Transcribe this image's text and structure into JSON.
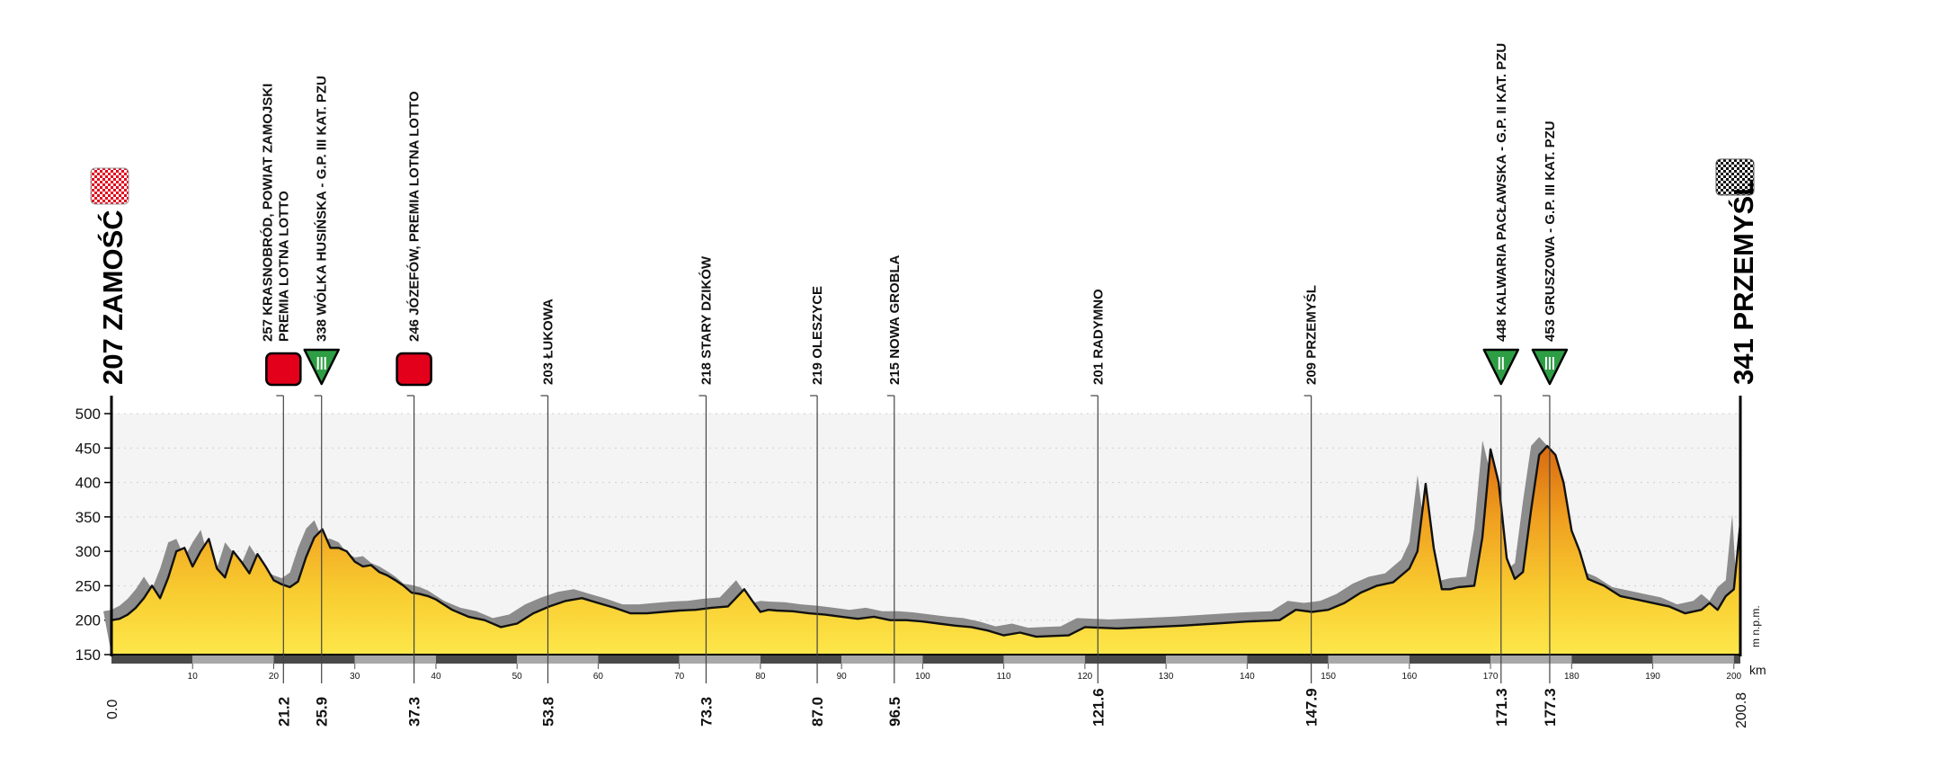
{
  "chart_data": {
    "type": "area",
    "title": "",
    "xlabel": "km",
    "ylabel": "m n.p.m.",
    "xlim": [
      0,
      200.8
    ],
    "ylim": [
      150,
      500
    ],
    "y_ticks": [
      150,
      200,
      250,
      300,
      350,
      400,
      450,
      500
    ],
    "x_ticks": [
      10,
      20,
      30,
      40,
      50,
      60,
      70,
      80,
      90,
      100,
      110,
      120,
      130,
      140,
      150,
      160,
      170,
      180,
      190,
      200
    ],
    "grid": true,
    "start": {
      "elevation_label": "207",
      "city": "ZAMOŚĆ",
      "km_label": "0.0"
    },
    "finish": {
      "elevation_label": "341",
      "city": "PRZEMYŚL",
      "km_label": "200.8"
    },
    "waypoints": [
      {
        "km": 21.2,
        "km_label": "21.2",
        "lines": [
          "257 KRASNOBRÓD, POWIAT ZAMOJSKI",
          "PREMIA LOTNA LOTTO"
        ],
        "marker": "sprint"
      },
      {
        "km": 25.9,
        "km_label": "25.9",
        "lines": [
          "338 WÓLKA HUSIŃSKA - G.P. III KAT. PZU"
        ],
        "marker": "climb",
        "category": "III"
      },
      {
        "km": 37.3,
        "km_label": "37.3",
        "lines": [
          "246 JÓZEFÓW, PREMIA LOTNA LOTTO"
        ],
        "marker": "sprint"
      },
      {
        "km": 53.8,
        "km_label": "53.8",
        "lines": [
          "203 ŁUKOWA"
        ],
        "marker": "none"
      },
      {
        "km": 73.3,
        "km_label": "73.3",
        "lines": [
          "218 STARY DZIKÓW"
        ],
        "marker": "none"
      },
      {
        "km": 87.0,
        "km_label": "87.0",
        "lines": [
          "219 OLESZYCE"
        ],
        "marker": "none"
      },
      {
        "km": 96.5,
        "km_label": "96.5",
        "lines": [
          "215 NOWA GROBLA"
        ],
        "marker": "none"
      },
      {
        "km": 121.6,
        "km_label": "121.6",
        "lines": [
          "201 RADYMNO"
        ],
        "marker": "none"
      },
      {
        "km": 147.9,
        "km_label": "147.9",
        "lines": [
          "209 PRZEMYŚL"
        ],
        "marker": "none"
      },
      {
        "km": 171.3,
        "km_label": "171.3",
        "lines": [
          "448 KALWARIA PACŁAWSKA - G.P. II KAT. PZU"
        ],
        "marker": "climb",
        "category": "II"
      },
      {
        "km": 177.3,
        "km_label": "177.3",
        "lines": [
          "453 GRUSZOWA - G.P. III KAT. PZU"
        ],
        "marker": "climb",
        "category": "III"
      }
    ],
    "profile": {
      "x": [
        0,
        1,
        2,
        3,
        4,
        5,
        6,
        7,
        8,
        9,
        10,
        11,
        12,
        13,
        14,
        15,
        16,
        17,
        18,
        19,
        20,
        21,
        22,
        23,
        24,
        25,
        26,
        27,
        28,
        29,
        30,
        31,
        32,
        33,
        34,
        35,
        36,
        37,
        38,
        39,
        40,
        42,
        44,
        46,
        48,
        50,
        52,
        54,
        56,
        58,
        60,
        62,
        64,
        66,
        68,
        70,
        72,
        74,
        76,
        78,
        79,
        80,
        81,
        82,
        84,
        86,
        88,
        90,
        92,
        94,
        96,
        98,
        100,
        102,
        104,
        106,
        108,
        110,
        112,
        114,
        116,
        118,
        120,
        124,
        128,
        132,
        136,
        140,
        144,
        146,
        148,
        150,
        152,
        154,
        156,
        158,
        160,
        161,
        162,
        163,
        164,
        165,
        166,
        168,
        169,
        170,
        171,
        172,
        173,
        174,
        175,
        176,
        177,
        178,
        179,
        180,
        181,
        182,
        183,
        184,
        186,
        188,
        190,
        192,
        194,
        196,
        197,
        198,
        199,
        200,
        200.8
      ],
      "y": [
        200,
        202,
        208,
        218,
        232,
        250,
        232,
        262,
        300,
        305,
        278,
        300,
        318,
        275,
        262,
        300,
        285,
        268,
        296,
        278,
        258,
        252,
        248,
        256,
        292,
        320,
        332,
        305,
        305,
        300,
        285,
        278,
        280,
        270,
        265,
        258,
        250,
        240,
        238,
        235,
        230,
        215,
        205,
        200,
        190,
        195,
        210,
        220,
        228,
        232,
        225,
        218,
        210,
        210,
        212,
        214,
        215,
        218,
        220,
        245,
        228,
        212,
        215,
        214,
        213,
        210,
        208,
        205,
        202,
        205,
        200,
        200,
        198,
        195,
        192,
        190,
        185,
        178,
        182,
        176,
        177,
        178,
        190,
        188,
        190,
        192,
        195,
        198,
        200,
        215,
        212,
        215,
        225,
        240,
        250,
        255,
        275,
        300,
        398,
        305,
        245,
        245,
        248,
        250,
        320,
        448,
        400,
        290,
        260,
        270,
        360,
        440,
        453,
        440,
        400,
        330,
        300,
        260,
        255,
        250,
        235,
        230,
        225,
        220,
        210,
        215,
        225,
        215,
        235,
        245,
        341
      ]
    }
  }
}
